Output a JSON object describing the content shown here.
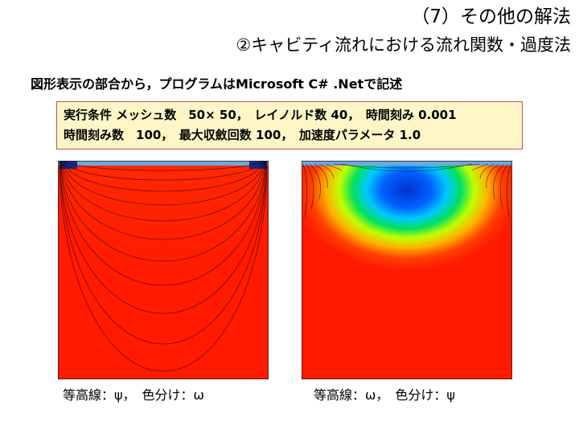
{
  "slide": {
    "title_line1": "（7）その他の解法",
    "title_line2": "②キャビティ流れにおける流れ関数・過度法",
    "intro": "図形表示の部合から，プログラムはMicrosoft C# .Netで記述",
    "conditions": {
      "line1": "実行条件 メッシュ数　50× 50，　レイノルド数 40，　時間刻み 0.001",
      "line2": "時間刻み数　100，　最大収斂回数 100，　加速度パラメータ 1.0"
    },
    "left_panel": {
      "caption": "等高線：ψ，　色分け：ω"
    },
    "right_panel": {
      "caption": "等高線：ω，　色分け：ψ"
    }
  }
}
